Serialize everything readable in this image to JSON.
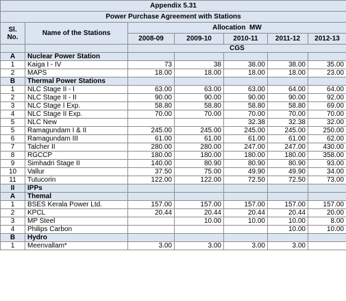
{
  "header": {
    "title": "Appendix 5.31",
    "subtitle": "Power Purchase Agreement with Stations"
  },
  "table": {
    "columns": {
      "sl": "Sl. No.",
      "name": "Name of the Stations",
      "group": "Allocation  MW",
      "years": [
        "2008-09",
        "2009-10",
        "2010-11",
        "2011-12",
        "2012-13"
      ]
    },
    "rows": [
      {
        "label": "CGS"
      },
      {
        "sl": "A",
        "name": "Nuclear Power Station"
      },
      {
        "sl": "1",
        "name": "Kaiga I - IV",
        "values": [
          "73",
          "38",
          "38.00",
          "38.00",
          "35.00"
        ]
      },
      {
        "sl": "2",
        "name": "MAPS",
        "values": [
          "18.00",
          "18.00",
          "18.00",
          "18.00",
          "23.00"
        ]
      },
      {
        "sl": "B",
        "name": "Thermal Power Stations"
      },
      {
        "sl": "1",
        "name": "NLC  Stage II - I",
        "values": [
          "63.00",
          "63.00",
          "63.00",
          "64.00",
          "64.00"
        ]
      },
      {
        "sl": "2",
        "name": "NLC  Stage II - II",
        "values": [
          "90.00",
          "90.00",
          "90.00",
          "90.00",
          "92.00"
        ]
      },
      {
        "sl": "3",
        "name": "NLC  Stage I Exp.",
        "values": [
          "58.80",
          "58.80",
          "58.80",
          "58.80",
          "69.00"
        ]
      },
      {
        "sl": "4",
        "name": "NLC  Stage II Exp.",
        "values": [
          "70.00",
          "70.00",
          "70.00",
          "70.00",
          "70.00"
        ]
      },
      {
        "sl": "5",
        "name": "NLC New",
        "values": [
          null,
          null,
          "32.38",
          "32.38",
          "32.00"
        ]
      },
      {
        "sl": "5",
        "name": "Ramagundam I & II",
        "values": [
          "245.00",
          "245.00",
          "245.00",
          "245.00",
          "250.00"
        ]
      },
      {
        "sl": "6",
        "name": "Ramagundam III",
        "values": [
          "61.00",
          "61.00",
          "61.00",
          "61.00",
          "62.00"
        ]
      },
      {
        "sl": "7",
        "name": "Talcher II",
        "values": [
          "280.00",
          "280.00",
          "247.00",
          "247.00",
          "430.00"
        ]
      },
      {
        "sl": "8",
        "name": "RGCCP",
        "values": [
          "180.00",
          "180.00",
          "180.00",
          "180.00",
          "358.00"
        ]
      },
      {
        "sl": "9",
        "name": "Simhadri Stage II",
        "values": [
          "140.00",
          "80.90",
          "80.90",
          "80.90",
          "93.00"
        ]
      },
      {
        "sl": "10",
        "name": "Vallur",
        "values": [
          "37.50",
          "75.00",
          "49.90",
          "49.90",
          "34.00"
        ]
      },
      {
        "sl": "11",
        "name": "Tutucorin",
        "values": [
          "122.00",
          "122.00",
          "72.50",
          "72.50",
          "73.00"
        ]
      },
      {
        "sl": "II",
        "name": "IPPs"
      },
      {
        "sl": "A",
        "name": "Themal"
      },
      {
        "sl": "1",
        "name": "BSES Kerala Power Ltd.",
        "values": [
          "157.00",
          "157.00",
          "157.00",
          "157.00",
          "157.00"
        ]
      },
      {
        "sl": "2",
        "name": "KPCL",
        "values": [
          "20.44",
          "20.44",
          "20.44",
          "20.44",
          "20.00"
        ]
      },
      {
        "sl": "3",
        "name": "MP Steel",
        "values": [
          null,
          "10.00",
          "10.00",
          "10.00",
          "8.00"
        ]
      },
      {
        "sl": "4",
        "name": "Philips Carbon",
        "values": [
          null,
          null,
          null,
          "10.00",
          "10.00"
        ]
      },
      {
        "sl": "B",
        "name": "Hydro"
      },
      {
        "sl": "1",
        "name": "Meenvallam*",
        "values": [
          "3.00",
          "3.00",
          "3.00",
          "3.00",
          null
        ]
      }
    ]
  }
}
